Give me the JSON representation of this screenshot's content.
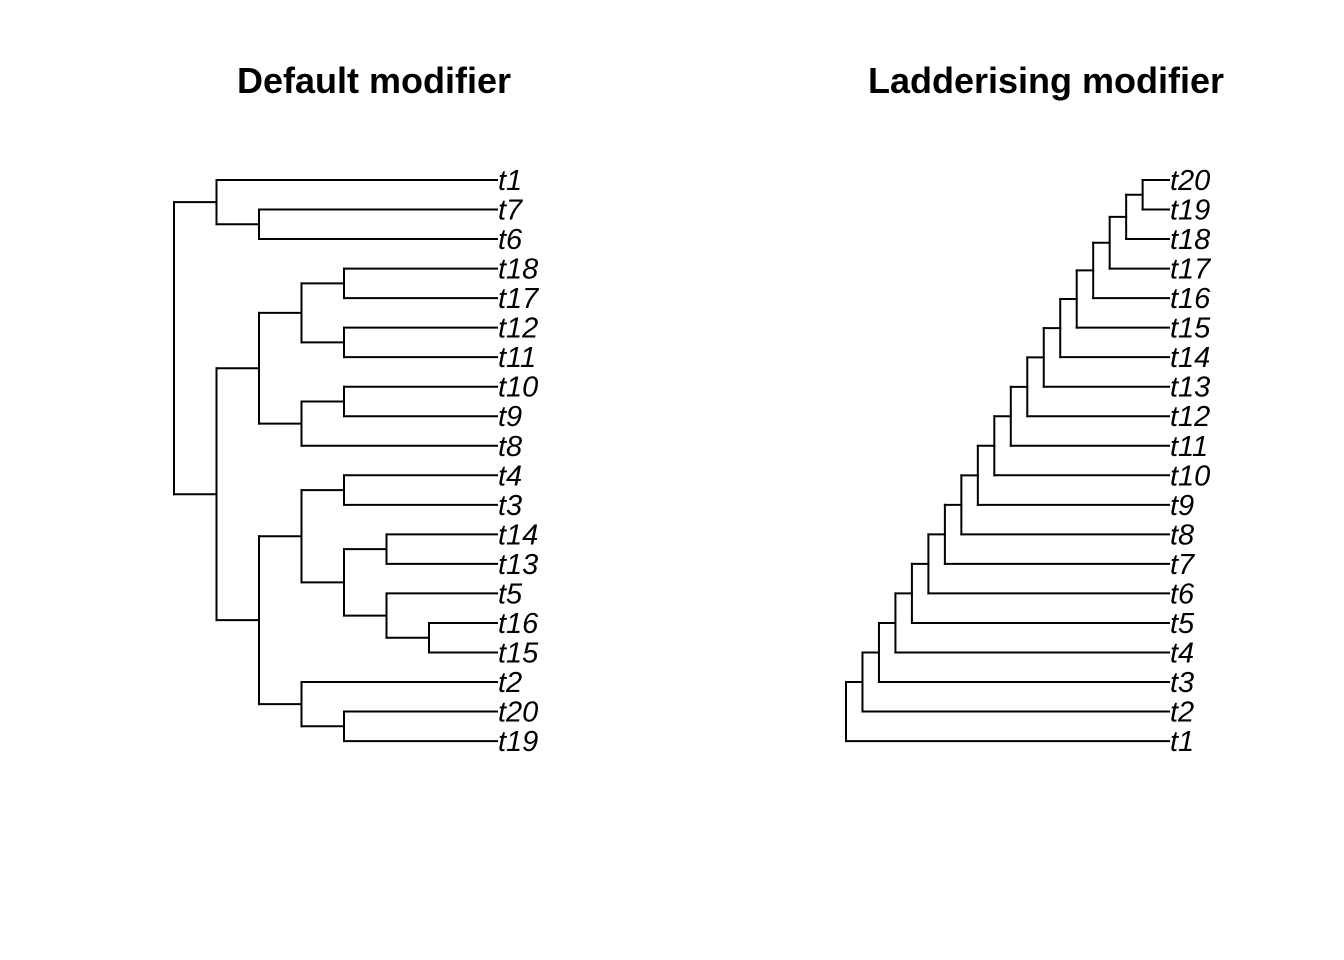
{
  "panels": [
    {
      "title": "Default modifier",
      "tree": {
        "c": [
          {
            "c": [
              {
                "t": "t1"
              },
              {
                "c": [
                  {
                    "t": "t7"
                  },
                  {
                    "t": "t6"
                  }
                ]
              }
            ]
          },
          {
            "c": [
              {
                "c": [
                  {
                    "c": [
                      {
                        "c": [
                          {
                            "t": "t18"
                          },
                          {
                            "t": "t17"
                          }
                        ]
                      },
                      {
                        "c": [
                          {
                            "t": "t12"
                          },
                          {
                            "t": "t11"
                          }
                        ]
                      }
                    ]
                  },
                  {
                    "c": [
                      {
                        "c": [
                          {
                            "t": "t10"
                          },
                          {
                            "t": "t9"
                          }
                        ]
                      },
                      {
                        "t": "t8"
                      }
                    ]
                  }
                ]
              },
              {
                "c": [
                  {
                    "c": [
                      {
                        "c": [
                          {
                            "t": "t4"
                          },
                          {
                            "t": "t3"
                          }
                        ]
                      },
                      {
                        "c": [
                          {
                            "c": [
                              {
                                "t": "t14"
                              },
                              {
                                "t": "t13"
                              }
                            ]
                          },
                          {
                            "c": [
                              {
                                "t": "t5"
                              },
                              {
                                "c": [
                                  {
                                    "t": "t16"
                                  },
                                  {
                                    "t": "t15"
                                  }
                                ]
                              }
                            ]
                          }
                        ]
                      }
                    ]
                  },
                  {
                    "c": [
                      {
                        "t": "t2"
                      },
                      {
                        "c": [
                          {
                            "t": "t20"
                          },
                          {
                            "t": "t19"
                          }
                        ]
                      }
                    ]
                  }
                ]
              }
            ]
          }
        ]
      }
    },
    {
      "title": "Ladderising modifier",
      "tree": {
        "c": [
          {
            "c": [
              {
                "c": [
                  {
                    "c": [
                      {
                        "c": [
                          {
                            "c": [
                              {
                                "c": [
                                  {
                                    "c": [
                                      {
                                        "c": [
                                          {
                                            "c": [
                                              {
                                                "c": [
                                                  {
                                                    "c": [
                                                      {
                                                        "c": [
                                                          {
                                                            "c": [
                                                              {
                                                                "c": [
                                                                  {
                                                                    "c": [
                                                                      {
                                                                        "c": [
                                                                          {
                                                                            "c": [
                                                                              {
                                                                                "c": [
                                                                                  {
                                                                                    "t": "t20"
                                                                                  },
                                                                                  {
                                                                                    "t": "t19"
                                                                                  }
                                                                                ]
                                                                              },
                                                                              {
                                                                                "t": "t18"
                                                                              }
                                                                            ]
                                                                          },
                                                                          {
                                                                            "t": "t17"
                                                                          }
                                                                        ]
                                                                      },
                                                                      {
                                                                        "t": "t16"
                                                                      }
                                                                    ]
                                                                  },
                                                                  {
                                                                    "t": "t15"
                                                                  }
                                                                ]
                                                              },
                                                              {
                                                                "t": "t14"
                                                              }
                                                            ]
                                                          },
                                                          {
                                                            "t": "t13"
                                                          }
                                                        ]
                                                      },
                                                      {
                                                        "t": "t12"
                                                      }
                                                    ]
                                                  },
                                                  {
                                                    "t": "t11"
                                                  }
                                                ]
                                              },
                                              {
                                                "t": "t10"
                                              }
                                            ]
                                          },
                                          {
                                            "t": "t9"
                                          }
                                        ]
                                      },
                                      {
                                        "t": "t8"
                                      }
                                    ]
                                  },
                                  {
                                    "t": "t7"
                                  }
                                ]
                              },
                              {
                                "t": "t6"
                              }
                            ]
                          },
                          {
                            "t": "t5"
                          }
                        ]
                      },
                      {
                        "t": "t4"
                      }
                    ]
                  },
                  {
                    "t": "t3"
                  }
                ]
              },
              {
                "t": "t2"
              }
            ]
          },
          {
            "t": "t1"
          }
        ]
      }
    }
  ]
}
